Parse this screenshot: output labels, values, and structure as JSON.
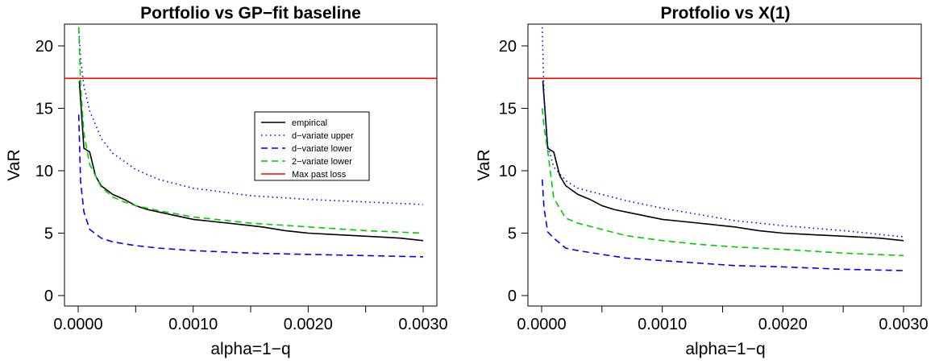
{
  "chart_data": [
    {
      "type": "line",
      "title": "Portfolio vs GP−fit baseline",
      "xlabel": "alpha=1−q",
      "ylabel": "VaR",
      "xlim": [
        0.0,
        0.003
      ],
      "ylim": [
        0,
        20
      ],
      "xticks": [
        "0.0000",
        "0.0010",
        "0.0020",
        "0.0030"
      ],
      "yticks": [
        "0",
        "5",
        "10",
        "15",
        "20"
      ],
      "grid": false,
      "legend_position": "center",
      "series": [
        {
          "name": "empirical",
          "color": "#000000",
          "style": "solid",
          "x": [
            1e-05,
            5e-05,
            0.0001,
            0.00015,
            0.0002,
            0.0003,
            0.0004,
            0.0005,
            0.0006,
            0.0008,
            0.001,
            0.0012,
            0.0014,
            0.0016,
            0.0018,
            0.002,
            0.0022,
            0.0024,
            0.0026,
            0.0028,
            0.003
          ],
          "y": [
            17.2,
            11.8,
            11.5,
            9.6,
            8.8,
            8.1,
            7.7,
            7.2,
            6.9,
            6.5,
            6.1,
            5.9,
            5.7,
            5.5,
            5.2,
            5.0,
            4.9,
            4.8,
            4.7,
            4.6,
            4.4
          ]
        },
        {
          "name": "d−variate upper",
          "color": "#0000ff",
          "style": "dotted",
          "x": [
            5e-06,
            2e-05,
            5e-05,
            0.0001,
            0.0002,
            0.0003,
            0.0005,
            0.0007,
            0.001,
            0.0015,
            0.002,
            0.0025,
            0.003
          ],
          "y": [
            21.5,
            19.0,
            16.8,
            14.8,
            12.6,
            11.4,
            10.1,
            9.3,
            8.6,
            8.0,
            7.7,
            7.5,
            7.3
          ]
        },
        {
          "name": "d−variate lower",
          "color": "#0000ff",
          "style": "dashed",
          "x": [
            5e-06,
            2e-05,
            5e-05,
            0.0001,
            0.0002,
            0.0003,
            0.0005,
            0.0007,
            0.001,
            0.0015,
            0.002,
            0.0025,
            0.003
          ],
          "y": [
            14.5,
            9.2,
            6.7,
            5.3,
            4.6,
            4.3,
            4.0,
            3.8,
            3.6,
            3.4,
            3.3,
            3.2,
            3.1
          ]
        },
        {
          "name": "2−variate lower",
          "color": "#00cc00",
          "style": "dashed",
          "x": [
            5e-06,
            2e-05,
            5e-05,
            0.0001,
            0.0002,
            0.0003,
            0.0004,
            0.0005,
            0.0007,
            0.001,
            0.0015,
            0.002,
            0.0025,
            0.003
          ],
          "y": [
            21.5,
            17.0,
            13.0,
            10.5,
            8.7,
            7.9,
            7.5,
            7.2,
            6.8,
            6.3,
            5.8,
            5.5,
            5.2,
            5.0
          ]
        },
        {
          "name": "Max past loss",
          "color": "#ff0000",
          "style": "solid",
          "x": [
            -0.00015,
            0.00315
          ],
          "y": [
            17.4,
            17.4
          ]
        }
      ]
    },
    {
      "type": "line",
      "title": "Protfolio vs X(1)",
      "xlabel": "alpha=1−q",
      "ylabel": "VaR",
      "xlim": [
        0.0,
        0.003
      ],
      "ylim": [
        0,
        20
      ],
      "xticks": [
        "0.0000",
        "0.0010",
        "0.0020",
        "0.0030"
      ],
      "yticks": [
        "0",
        "5",
        "10",
        "15",
        "20"
      ],
      "grid": false,
      "series": [
        {
          "color": "#000000",
          "style": "solid",
          "x": [
            1e-05,
            5e-05,
            0.0001,
            0.00015,
            0.0002,
            0.0003,
            0.0004,
            0.0005,
            0.0006,
            0.0008,
            0.001,
            0.0012,
            0.0014,
            0.0016,
            0.0018,
            0.002,
            0.0022,
            0.0024,
            0.0026,
            0.0028,
            0.003
          ],
          "y": [
            17.2,
            11.8,
            11.5,
            9.6,
            8.8,
            8.1,
            7.7,
            7.2,
            6.9,
            6.5,
            6.1,
            5.9,
            5.7,
            5.5,
            5.2,
            5.0,
            4.9,
            4.8,
            4.7,
            4.6,
            4.4
          ]
        },
        {
          "color": "#0000ff",
          "style": "dotted",
          "x": [
            5e-06,
            2e-05,
            5e-05,
            0.0001,
            0.0002,
            0.0003,
            0.0005,
            0.0007,
            0.001,
            0.0013,
            0.0016,
            0.002,
            0.0025,
            0.003
          ],
          "y": [
            21.5,
            16.0,
            12.0,
            10.3,
            9.2,
            8.6,
            8.1,
            7.6,
            7.0,
            6.5,
            6.0,
            5.6,
            5.2,
            4.7
          ]
        },
        {
          "color": "#0000ff",
          "style": "dashed",
          "x": [
            5e-06,
            2e-05,
            5e-05,
            0.0001,
            0.0002,
            0.0003,
            0.0005,
            0.0007,
            0.001,
            0.0013,
            0.0016,
            0.002,
            0.0025,
            0.003
          ],
          "y": [
            9.3,
            7.0,
            5.1,
            4.6,
            3.8,
            3.6,
            3.3,
            3.0,
            2.8,
            2.6,
            2.4,
            2.3,
            2.1,
            2.0
          ]
        },
        {
          "color": "#00cc00",
          "style": "dashed",
          "x": [
            5e-06,
            2e-05,
            5e-05,
            0.0001,
            0.0002,
            0.0003,
            0.0005,
            0.0007,
            0.001,
            0.0013,
            0.0016,
            0.002,
            0.0025,
            0.003
          ],
          "y": [
            15.0,
            13.5,
            11.6,
            7.8,
            6.2,
            5.8,
            5.3,
            4.8,
            4.4,
            4.1,
            3.9,
            3.7,
            3.4,
            3.2
          ]
        },
        {
          "color": "#ff0000",
          "style": "solid",
          "x": [
            -0.00015,
            0.00315
          ],
          "y": [
            17.4,
            17.4
          ]
        }
      ]
    }
  ]
}
